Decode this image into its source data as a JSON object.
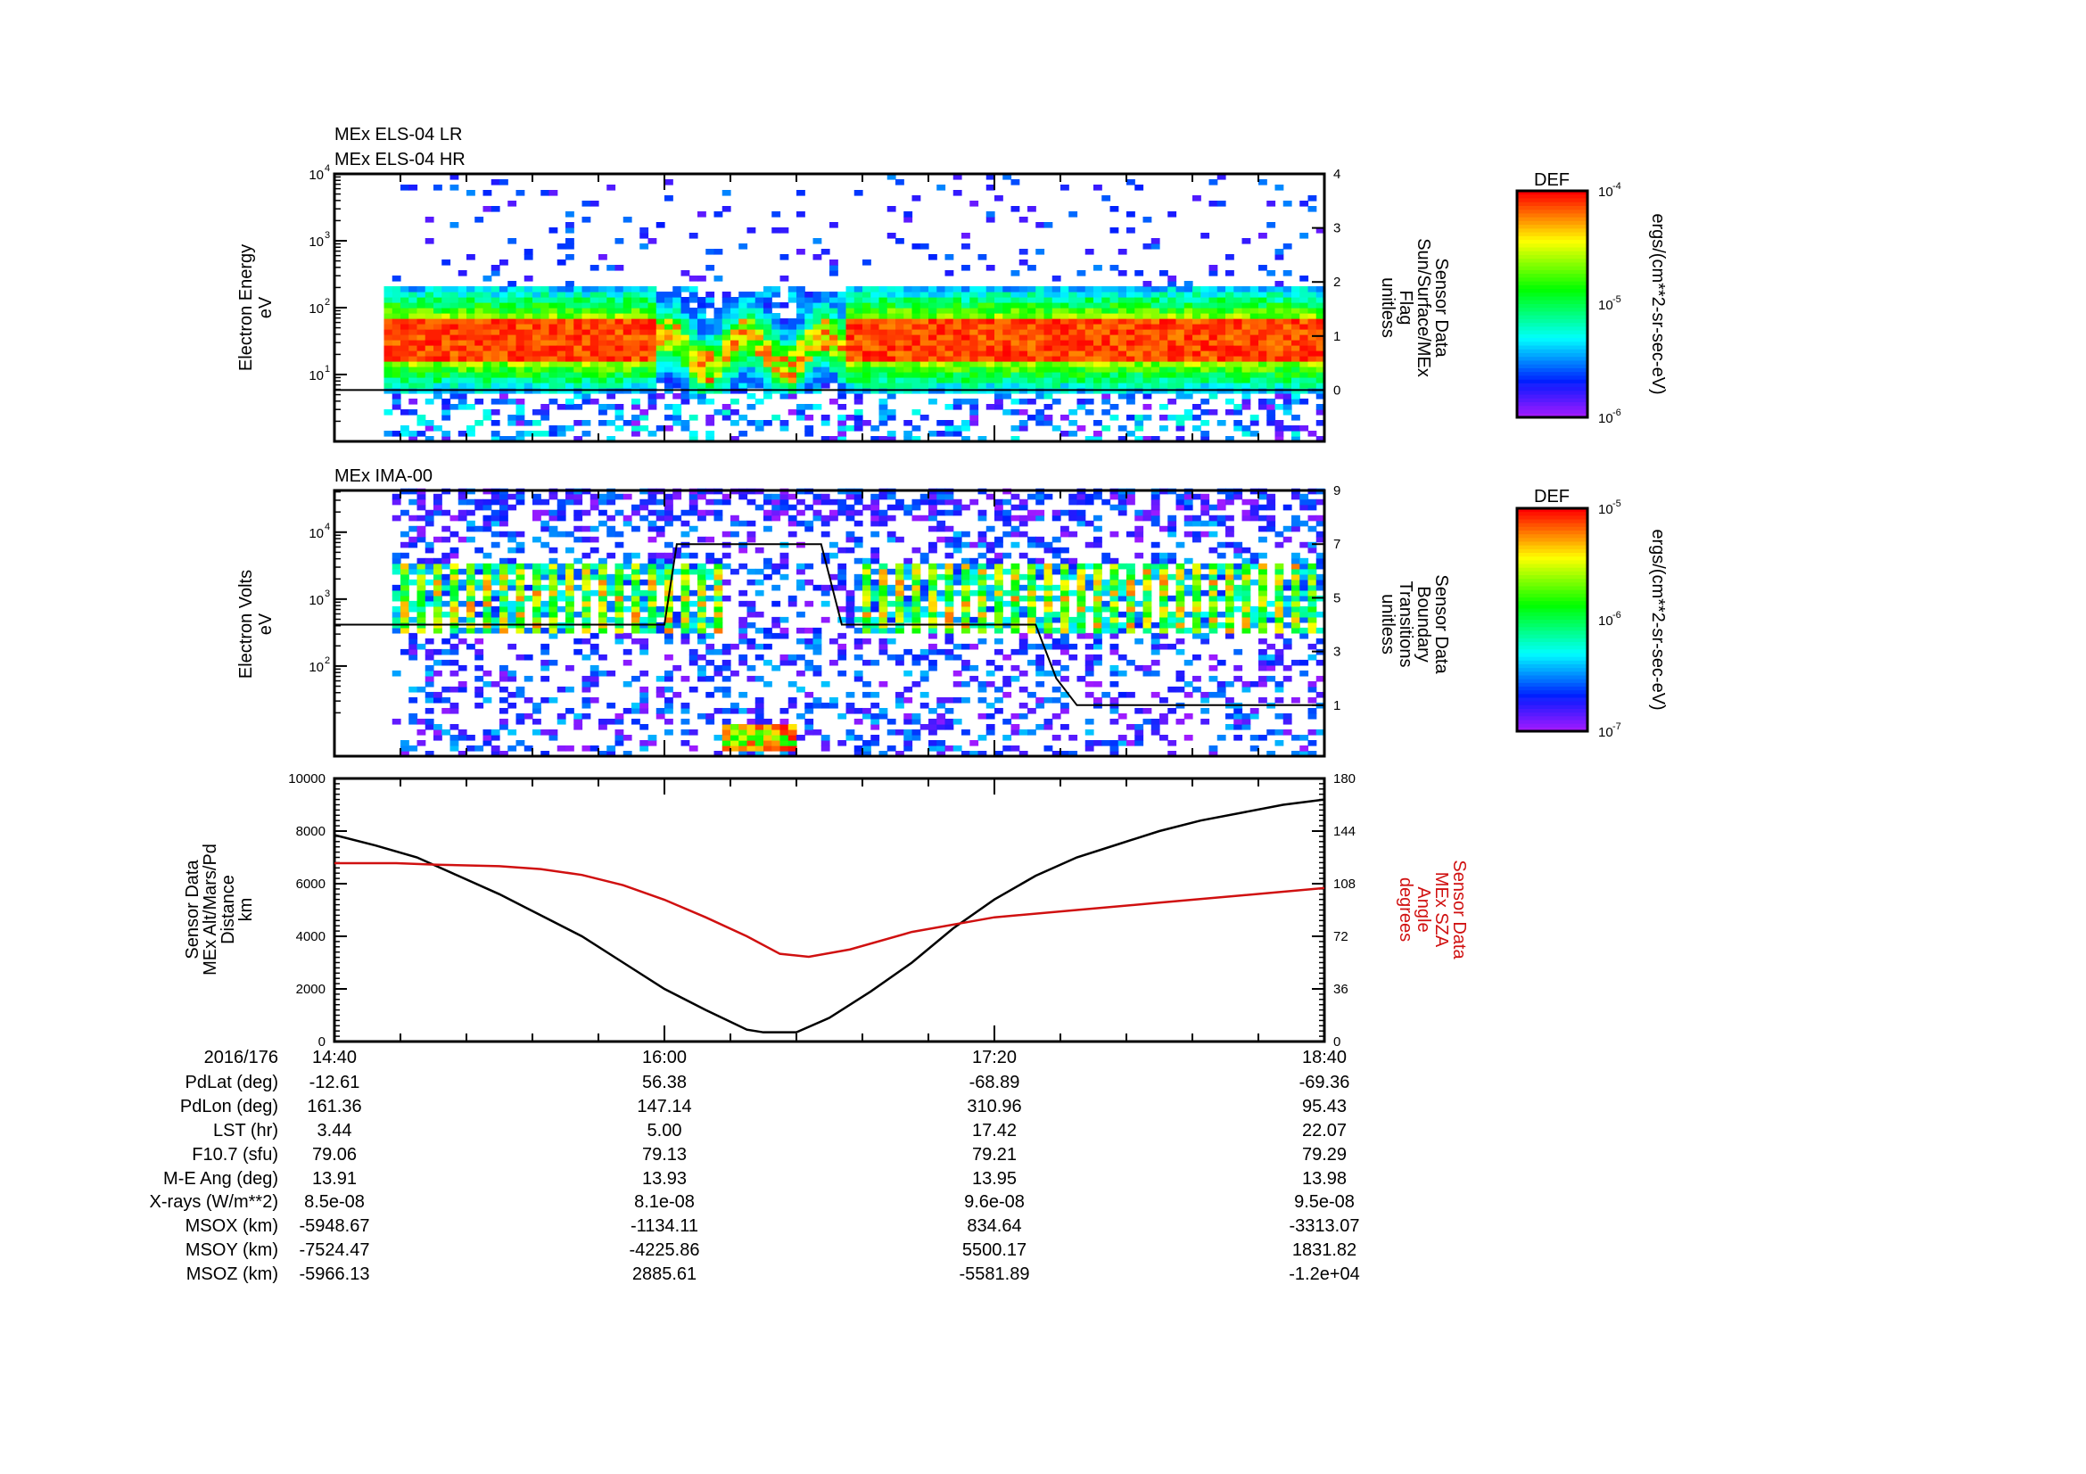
{
  "colors": {
    "altitude_line": "#000000",
    "sza_line": "#d01010",
    "boundary_line": "#000000"
  },
  "chart_data": [
    {
      "type": "heatmap",
      "titles": [
        "MEx ELS-04 LR",
        "MEx ELS-04 HR"
      ],
      "ylabel": [
        "Electron Energy",
        "eV"
      ],
      "yscale": "log",
      "ylim": [
        1,
        10000
      ],
      "yticks": [
        {
          "base": "10",
          "exp": "1",
          "v": 10
        },
        {
          "base": "10",
          "exp": "2",
          "v": 100
        },
        {
          "base": "10",
          "exp": "3",
          "v": 1000
        },
        {
          "base": "10",
          "exp": "4",
          "v": 10000
        }
      ],
      "y2label": [
        "Sensor Data",
        "Sun/Surface/MEx",
        "Flag",
        "unitless"
      ],
      "y2lim": [
        -0.95,
        4
      ],
      "y2ticks": [
        "0",
        "1",
        "2",
        "3",
        "4"
      ],
      "overlay_line": {
        "x_min": [
          0,
          240
        ],
        "y": [
          0,
          0
        ]
      },
      "colorbar": {
        "title": "DEF",
        "units": "ergs/(cm**2-sr-sec-eV)",
        "log_range": [
          -6,
          -4
        ],
        "ticks": [
          {
            "base": "10",
            "exp": "-4"
          },
          {
            "base": "10",
            "exp": "-5"
          },
          {
            "base": "10",
            "exp": "-6"
          }
        ]
      },
      "data_start_min": 12,
      "core_band_eV": [
        15,
        90
      ],
      "disturbed_interval_min": [
        78,
        122
      ]
    },
    {
      "type": "heatmap",
      "titles": [
        "MEx IMA-00"
      ],
      "ylabel": [
        "Electron Volts",
        "eV"
      ],
      "yscale": "log",
      "ylim": [
        4.5,
        42000
      ],
      "yticks": [
        {
          "base": "10",
          "exp": "2",
          "v": 100
        },
        {
          "base": "10",
          "exp": "3",
          "v": 1000
        },
        {
          "base": "10",
          "exp": "4",
          "v": 10000
        }
      ],
      "y2label": [
        "Sensor Data",
        "Boundary",
        "Transitions",
        "unitless"
      ],
      "y2lim": [
        -0.9,
        9
      ],
      "y2ticks": [
        "1",
        "3",
        "5",
        "7",
        "9"
      ],
      "overlay_line": {
        "x_min": [
          0,
          80,
          83,
          118,
          123,
          170,
          175,
          180,
          240
        ],
        "y": [
          4,
          4,
          7,
          7,
          4,
          4,
          2,
          1,
          1
        ]
      },
      "colorbar": {
        "title": "DEF",
        "units": "ergs/(cm**2-sr-sec-eV)",
        "log_range": [
          -7,
          -5
        ],
        "ticks": [
          {
            "base": "10",
            "exp": "-5"
          },
          {
            "base": "10",
            "exp": "-6"
          },
          {
            "base": "10",
            "exp": "-7"
          }
        ]
      },
      "data_start_min": 14,
      "core_band_eV": [
        300,
        3000
      ],
      "low_energy_ion_interval_min": [
        94,
        110
      ]
    },
    {
      "type": "line",
      "ylabel": [
        "Sensor Data",
        "MEx Alt/Mars/Pd",
        "Distance",
        "km"
      ],
      "ylim": [
        0,
        10000
      ],
      "yticks": [
        "0",
        "2000",
        "4000",
        "6000",
        "8000",
        "10000"
      ],
      "y2label": [
        "Sensor Data",
        "MEx SZA",
        "Angle",
        "degrees"
      ],
      "y2lim": [
        0,
        180
      ],
      "y2ticks": [
        "0",
        "36",
        "72",
        "108",
        "144",
        "180"
      ],
      "x_minutes_from_1440": true,
      "series": [
        {
          "name": "MEx Alt/Mars/Pd Distance (km)",
          "axis": "left",
          "x": [
            0,
            10,
            20,
            30,
            40,
            50,
            60,
            70,
            80,
            90,
            100,
            104,
            112,
            120,
            130,
            140,
            150,
            160,
            170,
            180,
            190,
            200,
            210,
            220,
            230,
            240
          ],
          "y": [
            7850,
            7450,
            7000,
            6300,
            5600,
            4800,
            4000,
            3000,
            2000,
            1200,
            450,
            350,
            350,
            900,
            1900,
            3000,
            4300,
            5400,
            6300,
            7000,
            7500,
            8000,
            8400,
            8700,
            9000,
            9200
          ]
        },
        {
          "name": "MEx SZA Angle (degrees)",
          "axis": "right",
          "x": [
            0,
            15,
            25,
            40,
            50,
            60,
            70,
            80,
            90,
            100,
            108,
            115,
            125,
            140,
            160,
            180,
            200,
            220,
            240
          ],
          "y": [
            122,
            122,
            121,
            120,
            118,
            114,
            107,
            97,
            85,
            72,
            60,
            58,
            63,
            75,
            85,
            90,
            95,
            100,
            105
          ]
        }
      ]
    }
  ],
  "xaxis": {
    "date_label": "2016/176",
    "ticks": [
      "14:40",
      "16:00",
      "17:20",
      "18:40"
    ]
  },
  "ephemeris": [
    {
      "label": "PdLat (deg)",
      "values": [
        "-12.61",
        "56.38",
        "-68.89",
        "-69.36"
      ]
    },
    {
      "label": "PdLon (deg)",
      "values": [
        "161.36",
        "147.14",
        "310.96",
        "95.43"
      ]
    },
    {
      "label": "LST (hr)",
      "values": [
        "3.44",
        "5.00",
        "17.42",
        "22.07"
      ]
    },
    {
      "label": "F10.7 (sfu)",
      "values": [
        "79.06",
        "79.13",
        "79.21",
        "79.29"
      ]
    },
    {
      "label": "M-E Ang (deg)",
      "values": [
        "13.91",
        "13.93",
        "13.95",
        "13.98"
      ]
    },
    {
      "label": "X-rays (W/m**2)",
      "values": [
        "8.5e-08",
        "8.1e-08",
        "9.6e-08",
        "9.5e-08"
      ]
    },
    {
      "label": "MSOX (km)",
      "values": [
        "-5948.67",
        "-1134.11",
        "834.64",
        "-3313.07"
      ]
    },
    {
      "label": "MSOY (km)",
      "values": [
        "-7524.47",
        "-4225.86",
        "5500.17",
        "1831.82"
      ]
    },
    {
      "label": "MSOZ (km)",
      "values": [
        "-5966.13",
        "2885.61",
        "-5581.89",
        "-1.2e+04"
      ]
    }
  ]
}
